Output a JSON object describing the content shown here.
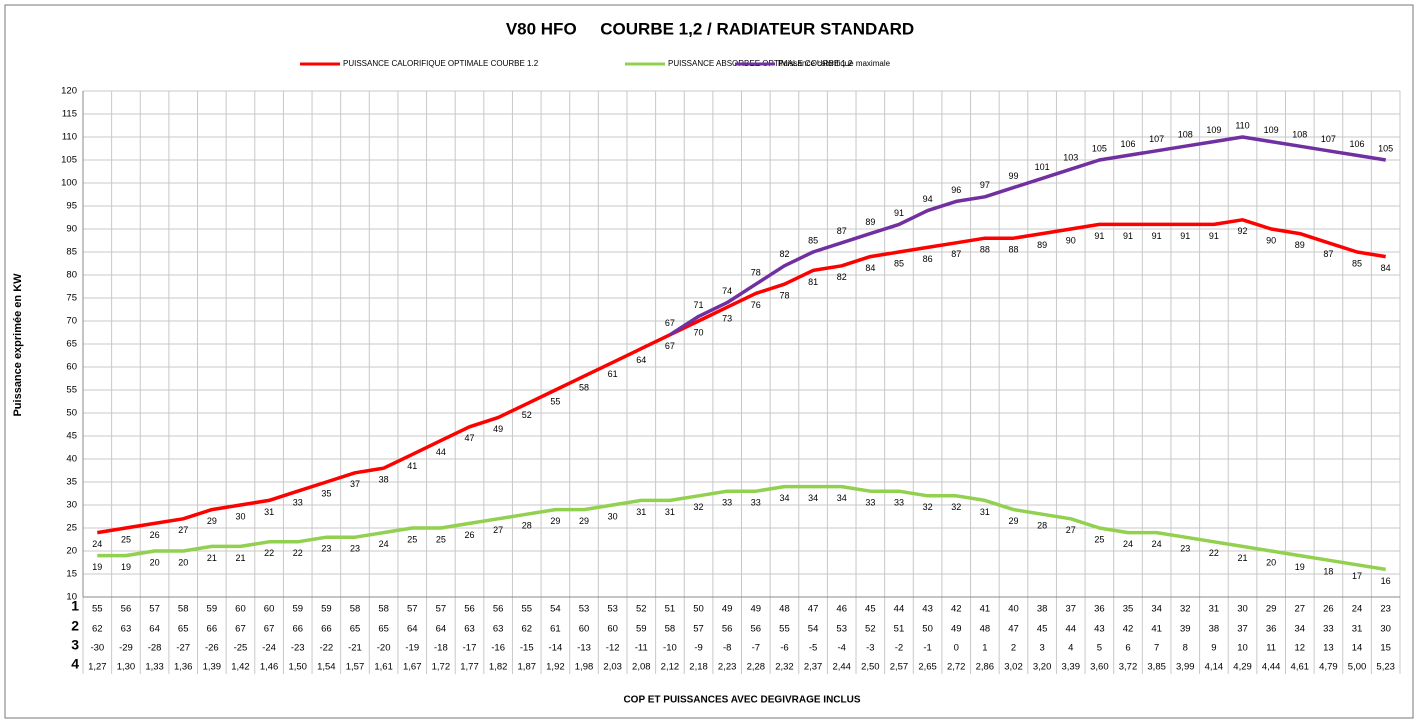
{
  "chart_data": {
    "type": "line",
    "title": "V80 HFO     COURBE 1,2 / RADIATEUR STANDARD",
    "y_label": "Puissance exprimée en KW",
    "x_label": "COP ET PUISSANCES AVEC DEGIVRAGE INCLUS",
    "ylim": [
      10,
      120
    ],
    "yticks": [
      10,
      15,
      20,
      25,
      30,
      35,
      40,
      45,
      50,
      55,
      60,
      65,
      70,
      75,
      80,
      85,
      90,
      95,
      100,
      105,
      110,
      115,
      120
    ],
    "grid": true,
    "legend": "top",
    "series": [
      {
        "name": "PUISSANCE CALORIFIQUE OPTIMALE COURBE 1.2",
        "color": "#ff0000",
        "label_position": "below",
        "values": [
          24,
          25,
          26,
          27,
          29,
          30,
          31,
          33,
          35,
          37,
          38,
          41,
          44,
          47,
          49,
          52,
          55,
          58,
          61,
          64,
          67,
          70,
          73,
          76,
          78,
          81,
          82,
          84,
          85,
          86,
          87,
          88,
          88,
          89,
          90,
          91,
          91,
          91,
          91,
          91,
          92,
          90,
          89,
          87,
          85,
          84
        ]
      },
      {
        "name": "PUISSANCE ABSORBEE OPTIMALE COURBE 1.2",
        "color": "#92d050",
        "label_position": "below",
        "values": [
          19,
          19,
          20,
          20,
          21,
          21,
          22,
          22,
          23,
          23,
          24,
          25,
          25,
          26,
          27,
          28,
          29,
          29,
          30,
          31,
          31,
          32,
          33,
          33,
          34,
          34,
          34,
          33,
          33,
          32,
          32,
          31,
          29,
          28,
          27,
          25,
          24,
          24,
          23,
          22,
          21,
          20,
          19,
          18,
          17,
          16
        ]
      },
      {
        "name": "Puissance calorifique maximale",
        "color": "#7030a0",
        "label_position": "above",
        "values": [
          null,
          null,
          null,
          null,
          null,
          null,
          null,
          null,
          null,
          null,
          null,
          null,
          null,
          null,
          null,
          null,
          null,
          null,
          null,
          null,
          67,
          71,
          74,
          78,
          82,
          85,
          87,
          89,
          91,
          94,
          96,
          97,
          99,
          101,
          103,
          105,
          106,
          107,
          108,
          109,
          110,
          109,
          108,
          107,
          106,
          105
        ]
      }
    ],
    "data_table": {
      "rows": [
        {
          "label": "1",
          "values": [
            55,
            56,
            57,
            58,
            59,
            60,
            60,
            59,
            59,
            58,
            58,
            57,
            57,
            56,
            56,
            55,
            54,
            53,
            53,
            52,
            51,
            50,
            49,
            49,
            48,
            47,
            46,
            45,
            44,
            43,
            42,
            41,
            40,
            38,
            37,
            36,
            35,
            34,
            32,
            31,
            30,
            29,
            27,
            26,
            24,
            23
          ]
        },
        {
          "label": "2",
          "values": [
            62,
            63,
            64,
            65,
            66,
            67,
            67,
            66,
            66,
            65,
            65,
            64,
            64,
            63,
            63,
            62,
            61,
            60,
            60,
            59,
            58,
            57,
            56,
            56,
            55,
            54,
            53,
            52,
            51,
            50,
            49,
            48,
            47,
            45,
            44,
            43,
            42,
            41,
            39,
            38,
            37,
            36,
            34,
            33,
            31,
            30
          ]
        },
        {
          "label": "3",
          "values": [
            -30,
            -29,
            -28,
            -27,
            -26,
            -25,
            -24,
            -23,
            -22,
            -21,
            -20,
            -19,
            -18,
            -17,
            -16,
            -15,
            -14,
            -13,
            -12,
            -11,
            -10,
            -9,
            -8,
            -7,
            -6,
            -5,
            -4,
            -3,
            -2,
            -1,
            0,
            1,
            2,
            3,
            4,
            5,
            6,
            7,
            8,
            9,
            10,
            11,
            12,
            13,
            14,
            15
          ]
        },
        {
          "label": "4",
          "values": [
            "1,27",
            "1,30",
            "1,33",
            "1,36",
            "1,39",
            "1,42",
            "1,46",
            "1,50",
            "1,54",
            "1,57",
            "1,61",
            "1,67",
            "1,72",
            "1,77",
            "1,82",
            "1,87",
            "1,92",
            "1,98",
            "2,03",
            "2,08",
            "2,12",
            "2,18",
            "2,23",
            "2,28",
            "2,32",
            "2,37",
            "2,44",
            "2,50",
            "2,57",
            "2,65",
            "2,72",
            "2,86",
            "3,02",
            "3,20",
            "3,39",
            "3,60",
            "3,72",
            "3,85",
            "3,99",
            "4,14",
            "4,29",
            "4,44",
            "4,61",
            "4,79",
            "5,00",
            "5,23"
          ]
        }
      ]
    }
  }
}
